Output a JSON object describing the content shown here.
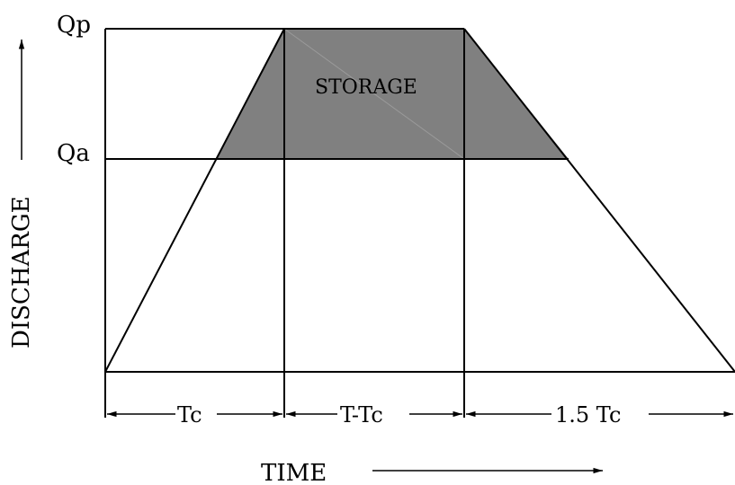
{
  "labels": {
    "qp": "Qp",
    "qa": "Qa",
    "storage": "STORAGE",
    "y_axis": "DISCHARGE",
    "x_axis": "TIME",
    "seg1": "Tc",
    "seg2": "T-Tc",
    "seg3": "1.5 Tc"
  },
  "colors": {
    "storage_fill": "#808080",
    "line": "#000000"
  }
}
